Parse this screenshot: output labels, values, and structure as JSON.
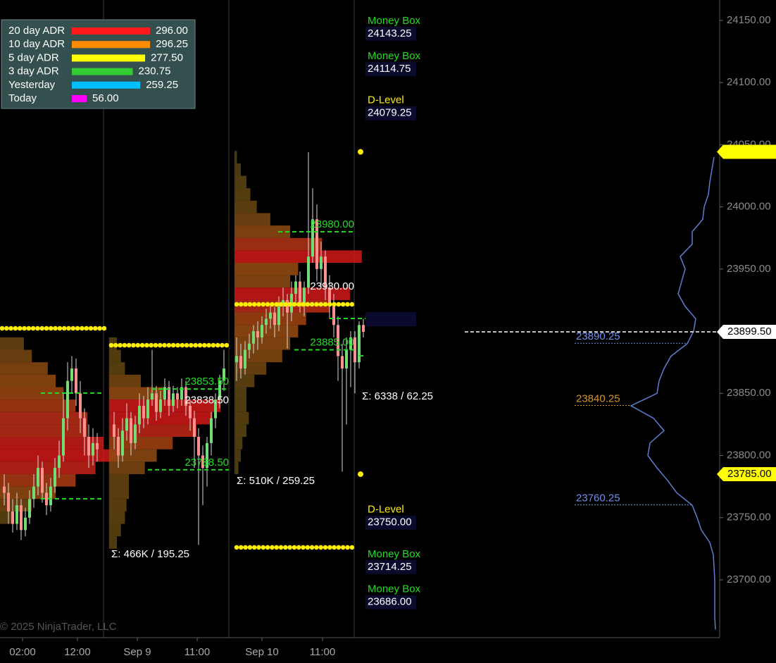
{
  "chart_data": {
    "type": "candlestick",
    "x": [
      1,
      2,
      3,
      4,
      5,
      6,
      7,
      8,
      9,
      10,
      11,
      12,
      13,
      14,
      15,
      16,
      17,
      18,
      19,
      20,
      21,
      22,
      23,
      27,
      28,
      29,
      30,
      31,
      32,
      33,
      34,
      35,
      36,
      37,
      38,
      39,
      40,
      41,
      42,
      43,
      44,
      45,
      46,
      47,
      48,
      49,
      50,
      51,
      52,
      53,
      56,
      57,
      58,
      59,
      60,
      61,
      62,
      63,
      64,
      65,
      66,
      67,
      68,
      69,
      70,
      71,
      72,
      73,
      74,
      75,
      76,
      77,
      78,
      79,
      80,
      81,
      82,
      83,
      84,
      85,
      86
    ],
    "open": [
      23775,
      23770,
      23755,
      23745,
      23760,
      23740,
      23750,
      23765,
      23775,
      23790,
      23770,
      23760,
      23775,
      23790,
      23800,
      23830,
      23860,
      23870,
      23850,
      23830,
      23815,
      23800,
      23810,
      23825,
      23815,
      23800,
      23820,
      23830,
      23810,
      23825,
      23840,
      23830,
      23845,
      23850,
      23835,
      23845,
      23855,
      23840,
      23850,
      23845,
      23855,
      23840,
      23830,
      23815,
      23800,
      23790,
      23810,
      23830,
      23845,
      23860,
      23875,
      23880,
      23870,
      23885,
      23890,
      23900,
      23895,
      23905,
      23910,
      23915,
      23905,
      23920,
      23925,
      23915,
      23930,
      23940,
      23920,
      23935,
      23960,
      23990,
      23950,
      23960,
      23935,
      23920,
      23905,
      23880,
      23870,
      23885,
      23895,
      23875,
      23905
    ],
    "high": [
      23785,
      23778,
      23765,
      23770,
      23765,
      23758,
      23772,
      23785,
      23800,
      23795,
      23778,
      23782,
      23798,
      23812,
      23850,
      23875,
      23880,
      23878,
      23860,
      23838,
      23825,
      23822,
      23818,
      23835,
      23822,
      23830,
      23842,
      23835,
      23832,
      23850,
      23848,
      23855,
      23885,
      23856,
      23852,
      23862,
      23860,
      23856,
      23855,
      23862,
      23860,
      23845,
      23836,
      23822,
      23808,
      23815,
      23835,
      23850,
      23865,
      23885,
      23895,
      23890,
      23892,
      23898,
      23905,
      23908,
      23912,
      23918,
      23922,
      23920,
      23928,
      23935,
      23930,
      23940,
      23945,
      23948,
      23940,
      24044,
      24015,
      24002,
      23972,
      23965,
      23945,
      23930,
      23912,
      23890,
      23895,
      23900,
      23900,
      23908,
      23910
    ],
    "low": [
      23760,
      23745,
      23738,
      23740,
      23732,
      23735,
      23745,
      23758,
      23768,
      23762,
      23752,
      23755,
      23770,
      23782,
      23795,
      23820,
      23850,
      23840,
      23818,
      23800,
      23790,
      23792,
      23795,
      23805,
      23790,
      23795,
      23812,
      23800,
      23805,
      23818,
      23822,
      23825,
      23840,
      23828,
      23830,
      23840,
      23832,
      23835,
      23838,
      23840,
      23832,
      23820,
      23790,
      23728,
      23760,
      23775,
      23800,
      23822,
      23838,
      23852,
      23860,
      23862,
      23865,
      23878,
      23882,
      23885,
      23890,
      23898,
      23902,
      23895,
      23900,
      23912,
      23886,
      23908,
      23922,
      23915,
      23912,
      23930,
      23955,
      23940,
      23935,
      23925,
      23910,
      23895,
      23860,
      23787,
      23825,
      23855,
      23850,
      23870,
      23895
    ],
    "close": [
      23770,
      23755,
      23745,
      23760,
      23740,
      23750,
      23765,
      23775,
      23790,
      23770,
      23760,
      23775,
      23790,
      23800,
      23830,
      23860,
      23870,
      23850,
      23830,
      23815,
      23800,
      23810,
      23805,
      23815,
      23800,
      23820,
      23830,
      23810,
      23825,
      23840,
      23830,
      23845,
      23850,
      23835,
      23845,
      23855,
      23840,
      23850,
      23845,
      23855,
      23840,
      23830,
      23815,
      23800,
      23790,
      23810,
      23830,
      23845,
      23860,
      23870,
      23880,
      23870,
      23885,
      23890,
      23900,
      23895,
      23905,
      23910,
      23915,
      23905,
      23920,
      23925,
      23915,
      23930,
      23940,
      23920,
      23935,
      23960,
      23990,
      23950,
      23960,
      23935,
      23920,
      23905,
      23880,
      23870,
      23885,
      23895,
      23875,
      23905,
      23899.5
    ],
    "up_color": "#74dc74",
    "down_color": "#ff9090",
    "wick_color": "#d8d8d8",
    "xlim": [
      0,
      170.33
    ],
    "xticks": [
      {
        "value": 5.33,
        "label": "02:00"
      },
      {
        "value": 18.33,
        "label": "12:00"
      },
      {
        "value": 32.5,
        "label": "Sep 9"
      },
      {
        "value": 46.67,
        "label": "11:00"
      },
      {
        "value": 62,
        "label": "Sep 10"
      },
      {
        "value": 76.33,
        "label": "11:00"
      }
    ],
    "session_breaks": [
      24.5,
      54.17,
      83.83
    ],
    "ylim": [
      23653.5,
      24166.4
    ],
    "yticks": [
      {
        "value": 23700,
        "label": "23700.00"
      },
      {
        "value": 23750,
        "label": "23750.00"
      },
      {
        "value": 23800,
        "label": "23800.00"
      },
      {
        "value": 23850,
        "label": "23850.00"
      },
      {
        "value": 23900,
        "label": "23900.00"
      },
      {
        "value": 23950,
        "label": "23950.00"
      },
      {
        "value": 24000,
        "label": "24000.00"
      },
      {
        "value": 24050,
        "label": "24050.00"
      },
      {
        "value": 24100,
        "label": "24100.00"
      },
      {
        "value": 24150,
        "label": "24150.00"
      }
    ],
    "profile_colors": [
      "#4f4412",
      "#9a4c12",
      "#d21818"
    ],
    "profiles": [
      {
        "x0": 0,
        "prices": [
          23890,
          23880,
          23870,
          23860,
          23850,
          23840,
          23830,
          23820,
          23810,
          23800,
          23790,
          23780,
          23770,
          23760,
          23750
        ],
        "volumes": [
          30,
          40,
          60,
          70,
          80,
          95,
          110,
          110,
          130,
          150,
          120,
          95,
          70,
          40,
          15
        ]
      },
      {
        "x0": 25.8,
        "prices": [
          23890,
          23880,
          23870,
          23860,
          23850,
          23840,
          23830,
          23820,
          23810,
          23800,
          23790,
          23780,
          23770,
          23760,
          23750,
          23740,
          23730
        ],
        "volumes": [
          10,
          15,
          20,
          40,
          70,
          140,
          130,
          110,
          80,
          60,
          45,
          25,
          25,
          22,
          20,
          15,
          10
        ]
      },
      {
        "x0": 55.5,
        "prices": [
          24040,
          24030,
          24020,
          24010,
          24000,
          23990,
          23980,
          23970,
          23960,
          23950,
          23940,
          23930,
          23920,
          23910,
          23900,
          23890,
          23880,
          23870,
          23860,
          23850,
          23840,
          23830,
          23820,
          23810,
          23800,
          23790
        ],
        "volumes": [
          3,
          8,
          15,
          20,
          28,
          45,
          70,
          110,
          160,
          80,
          70,
          145,
          120,
          90,
          80,
          70,
          60,
          40,
          25,
          15,
          15,
          18,
          15,
          10,
          8,
          5
        ]
      }
    ],
    "session_stats": [
      "Σ: 466K / 195.25",
      "Σ: 510K / 259.25",
      "Σ: 6338 / 62.25"
    ],
    "green_levels": [
      {
        "value": 23850.25,
        "x_range": [
          9.67,
          24.67
        ]
      },
      {
        "value": 23765.25,
        "x_range": [
          9.67,
          24.67
        ]
      },
      {
        "value": 23853.5,
        "label": "23853.50",
        "x_range": [
          35.83,
          54.17
        ]
      },
      {
        "value": 23788.5,
        "label": "23788.50",
        "x_range": [
          35,
          54.17
        ]
      },
      {
        "value": 23980,
        "label": "23980.00",
        "x_range": [
          65.83,
          83.83
        ]
      },
      {
        "value": 23910.25,
        "x_range": [
          78,
          86.67
        ]
      },
      {
        "value": 23885,
        "label": "23885.00",
        "x_range": [
          69.67,
          83.83
        ]
      },
      {
        "value": 23880.25,
        "x_range": [
          85,
          86.67
        ]
      }
    ],
    "green_color": "#22dd22",
    "poc_labels": [
      {
        "value": 23800.25,
        "x": 24.67
      },
      {
        "value": 23838.5,
        "label": "23838.50",
        "x": 54.17
      },
      {
        "value": 23930,
        "label": "23930.00",
        "x": 83.83
      },
      {
        "value": 23900.25,
        "x": 86.67
      }
    ],
    "boxed_labels": [
      {
        "value": 23914.75,
        "x": 87.17
      }
    ],
    "dotted_levels": [
      {
        "value": 23902.3,
        "x_range": [
          0,
          25
        ]
      },
      {
        "value": 23888.7,
        "x_range": [
          25.83,
          54.17
        ]
      },
      {
        "value": 23921.6,
        "x_range": [
          55.5,
          84
        ]
      },
      {
        "value": 23726.1,
        "x_range": [
          55.5,
          84
        ]
      }
    ],
    "dot_color": "#ffee00",
    "annotations": [
      {
        "title": "Money Box",
        "value": 24143.25,
        "color": "#22dd22"
      },
      {
        "title": "Money Box",
        "value": 24114.75,
        "color": "#22dd22"
      },
      {
        "title": "D-Level",
        "value": 24079.25,
        "color": "#ffee00"
      },
      {
        "title": "D-Level",
        "value": {
          "value": 23750,
          "label": "23750.00"
        },
        "color": "#ffee00"
      },
      {
        "title": "Money Box",
        "value": 23714.25,
        "color": "#22dd22"
      },
      {
        "title": "Money Box",
        "value": {
          "value": 23686,
          "label": "23686.00"
        },
        "color": "#22dd22"
      }
    ],
    "price_tags": [
      {
        "value": 24044.25,
        "color": "#ffff00"
      },
      {
        "value": 23785,
        "label": "23785.00",
        "color": "#ffff00"
      },
      {
        "value": 23899.5,
        "label": "23899.50",
        "color": "#ffffff"
      }
    ],
    "composite_profile": {
      "prices": [
        24040,
        24030,
        24020,
        24010,
        24000,
        23990,
        23980,
        23970,
        23960,
        23950,
        23940,
        23930,
        23920,
        23910,
        23900,
        23890,
        23880,
        23870,
        23860,
        23850,
        23840,
        23830,
        23820,
        23810,
        23800,
        23790,
        23780,
        23770,
        23760,
        23750,
        23740,
        23730,
        23720,
        23710,
        23700,
        23690,
        23680,
        23670,
        23660
      ],
      "volumes": [
        4,
        7,
        10,
        12,
        18,
        20,
        35,
        35,
        52,
        45,
        50,
        55,
        45,
        30,
        33,
        42,
        65,
        75,
        82,
        85,
        122,
        90,
        75,
        95,
        98,
        85,
        70,
        57,
        35,
        28,
        22,
        10,
        5,
        4,
        3,
        3,
        3,
        3,
        2
      ],
      "color": "#5b7fd0"
    },
    "volume_levels": [
      {
        "value": 23890.25,
        "color": "#6f8fe8"
      },
      {
        "value": 23840.25,
        "color": "#d4952b"
      },
      {
        "value": 23760.25,
        "color": "#6f8fe8"
      }
    ],
    "adr": [
      {
        "label": "20 day ADR",
        "value": {
          "value": 296,
          "label": "296.00"
        },
        "color": "#ff1a1a"
      },
      {
        "label": "10 day ADR",
        "value": 296.25,
        "color": "#ff8c00"
      },
      {
        "label": "5 day ADR",
        "value": {
          "value": 277.5,
          "label": "277.50"
        },
        "color": "#ffff00"
      },
      {
        "label": "3 day ADR",
        "value": 230.75,
        "color": "#33cc33"
      },
      {
        "label": "Yesterday",
        "value": 259.25,
        "color": "#00bfff"
      },
      {
        "label": "Today",
        "value": {
          "value": 56,
          "label": "56.00"
        },
        "color": "#ff00ff"
      }
    ],
    "copyright": "© 2025 NinjaTrader, LLC"
  }
}
